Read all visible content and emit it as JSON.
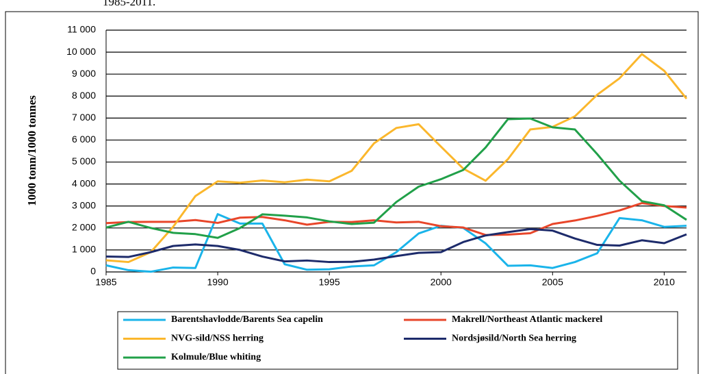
{
  "caption": "1985-2011.",
  "chart_data": {
    "type": "line",
    "y_label": "1000 tonn/1000 tonnes",
    "x": [
      1985,
      1986,
      1987,
      1988,
      1989,
      1990,
      1991,
      1992,
      1993,
      1994,
      1995,
      1996,
      1997,
      1998,
      1999,
      2000,
      2001,
      2002,
      2003,
      2004,
      2005,
      2006,
      2007,
      2008,
      2009,
      2010,
      2011
    ],
    "xlim": [
      1985,
      2011
    ],
    "xticks": [
      1985,
      1990,
      1995,
      2000,
      2005,
      2010
    ],
    "ylim": [
      0,
      11000
    ],
    "yticks": [
      0,
      {
        "value": 1000,
        "label": "1 000"
      },
      {
        "value": 2000,
        "label": "2 000"
      },
      {
        "value": 3000,
        "label": "3 000"
      },
      {
        "value": 4000,
        "label": "4 000"
      },
      {
        "value": 5000,
        "label": "5 000"
      },
      {
        "value": 6000,
        "label": "6 000"
      },
      {
        "value": 7000,
        "label": "7 000"
      },
      {
        "value": 8000,
        "label": "8 000"
      },
      {
        "value": 9000,
        "label": "9 000"
      },
      {
        "value": 10000,
        "label": "10 000"
      },
      {
        "value": 11000,
        "label": "11 000"
      }
    ],
    "grid": true,
    "series": [
      {
        "name": "Barentshavlodde/Barents Sea capelin",
        "color": "#1ab4ea",
        "values": [
          300,
          80,
          10,
          200,
          180,
          2630,
          2200,
          2200,
          350,
          100,
          120,
          250,
          300,
          900,
          1750,
          2100,
          2000,
          1300,
          280,
          300,
          180,
          450,
          850,
          2450,
          2350,
          2050,
          2100
        ]
      },
      {
        "name": "Makrell/Northeast Atlantic mackerel",
        "color": "#e8462a",
        "values": [
          2220,
          2270,
          2280,
          2280,
          2360,
          2230,
          2470,
          2500,
          2350,
          2150,
          2280,
          2270,
          2350,
          2250,
          2280,
          2080,
          2020,
          1680,
          1700,
          1760,
          2180,
          2340,
          2550,
          2800,
          3130,
          3000,
          2930
        ]
      },
      {
        "name": "NVG-sild/NSS herring",
        "color": "#fbb72c",
        "values": [
          530,
          450,
          900,
          2050,
          3450,
          4120,
          4060,
          4160,
          4080,
          4200,
          4120,
          4600,
          5850,
          6550,
          6720,
          5700,
          4700,
          4150,
          5130,
          6480,
          6600,
          7080,
          8060,
          8810,
          9910,
          9150,
          7880
        ]
      },
      {
        "name": "Nordsjøsild/North Sea herring",
        "color": "#1d2b6b",
        "values": [
          700,
          680,
          900,
          1180,
          1250,
          1180,
          1000,
          700,
          480,
          520,
          450,
          460,
          560,
          720,
          870,
          900,
          1360,
          1660,
          1810,
          1950,
          1880,
          1520,
          1230,
          1200,
          1440,
          1310,
          1710
        ]
      },
      {
        "name": "Kolmule/Blue whiting",
        "color": "#21a049",
        "values": [
          2020,
          2280,
          2000,
          1780,
          1720,
          1550,
          2000,
          2620,
          2560,
          2480,
          2300,
          2180,
          2240,
          3180,
          3880,
          4220,
          4640,
          5660,
          6950,
          6980,
          6580,
          6480,
          5360,
          4150,
          3220,
          3030,
          2370
        ]
      }
    ]
  }
}
